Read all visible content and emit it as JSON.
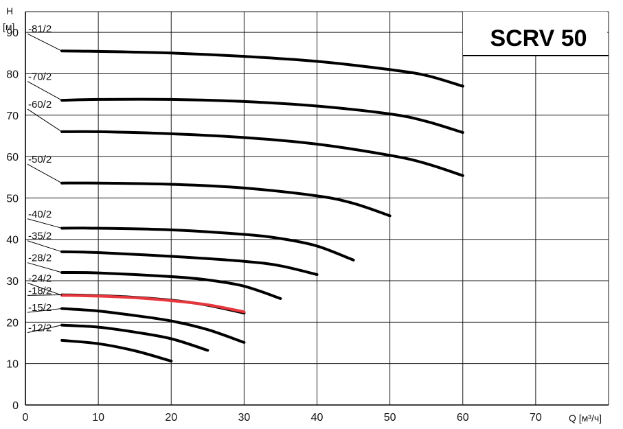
{
  "chart_data": {
    "type": "line",
    "title": "SCRV 50",
    "ylabel_h": "H",
    "ylabel_unit": "[м]",
    "xlabel": "Q [м³/ч]",
    "xlim": [
      0,
      80
    ],
    "ylim": [
      0,
      95
    ],
    "x_ticks": [
      "0",
      "10",
      "20",
      "30",
      "40",
      "50",
      "60",
      "70"
    ],
    "y_ticks": [
      "0",
      "10",
      "20",
      "30",
      "40",
      "50",
      "60",
      "70",
      "80",
      "90"
    ],
    "x_tick_values": [
      0,
      10,
      20,
      30,
      40,
      50,
      60,
      70
    ],
    "y_tick_values": [
      0,
      10,
      20,
      30,
      40,
      50,
      60,
      70,
      80,
      90
    ],
    "grid": true,
    "series": [
      {
        "name": "-81/2",
        "color": "#000000",
        "x": [
          5,
          10,
          20,
          30,
          40,
          50,
          55,
          60
        ],
        "y": [
          85.5,
          85.4,
          85.0,
          84.2,
          83.0,
          81.0,
          79.6,
          77.0
        ]
      },
      {
        "name": "-70/2",
        "color": "#000000",
        "x": [
          5,
          10,
          20,
          30,
          40,
          50,
          55,
          60
        ],
        "y": [
          73.6,
          73.8,
          73.8,
          73.3,
          72.2,
          70.3,
          68.5,
          65.8
        ]
      },
      {
        "name": "-60/2",
        "color": "#000000",
        "x": [
          5,
          10,
          20,
          30,
          40,
          50,
          55,
          60
        ],
        "y": [
          66.0,
          66.0,
          65.5,
          64.6,
          63.0,
          60.3,
          58.3,
          55.4
        ]
      },
      {
        "name": "-50/2",
        "color": "#000000",
        "x": [
          5,
          10,
          20,
          30,
          40,
          45,
          50
        ],
        "y": [
          53.6,
          53.6,
          53.3,
          52.4,
          50.5,
          48.7,
          45.7
        ]
      },
      {
        "name": "-40/2",
        "color": "#000000",
        "x": [
          5,
          10,
          20,
          30,
          35,
          40,
          45
        ],
        "y": [
          42.7,
          42.7,
          42.3,
          41.2,
          40.2,
          38.4,
          35.0
        ]
      },
      {
        "name": "-35/2",
        "color": "#000000",
        "x": [
          5,
          10,
          20,
          30,
          35,
          40
        ],
        "y": [
          37.0,
          36.8,
          35.9,
          34.7,
          33.6,
          31.5
        ]
      },
      {
        "name": "-28/2",
        "color": "#000000",
        "x": [
          5,
          10,
          20,
          25,
          30,
          35
        ],
        "y": [
          32.0,
          31.9,
          31.0,
          30.2,
          28.7,
          25.7
        ]
      },
      {
        "name": "-24/2",
        "color": "#e8363d",
        "x": [
          5,
          10,
          15,
          20,
          25,
          30
        ],
        "y": [
          26.5,
          26.3,
          25.9,
          25.2,
          24.2,
          22.5
        ]
      },
      {
        "name": "-18/2",
        "color": "#000000",
        "x": [
          5,
          10,
          15,
          20,
          25,
          30
        ],
        "y": [
          26.6,
          26.4,
          26.0,
          25.3,
          24.1,
          22.2
        ]
      },
      {
        "name": "-15/2",
        "color": "#000000",
        "x": [
          5,
          10,
          15,
          20,
          25,
          30
        ],
        "y": [
          23.3,
          22.7,
          21.6,
          20.3,
          18.2,
          15.1
        ]
      },
      {
        "name": "-12/2",
        "color": "#000000",
        "x": [
          5,
          10,
          15,
          20,
          25
        ],
        "y": [
          19.3,
          18.8,
          17.6,
          16.0,
          13.2
        ]
      },
      {
        "name": "",
        "color": "#000000",
        "x": [
          5,
          10,
          15,
          20
        ],
        "y": [
          15.6,
          14.8,
          13.1,
          10.6
        ]
      }
    ],
    "label_positions_y": [
      90,
      78.5,
      71.8,
      58.5,
      45.3,
      40.0,
      34.7,
      29.8,
      26.8,
      22.7,
      17.8
    ]
  }
}
